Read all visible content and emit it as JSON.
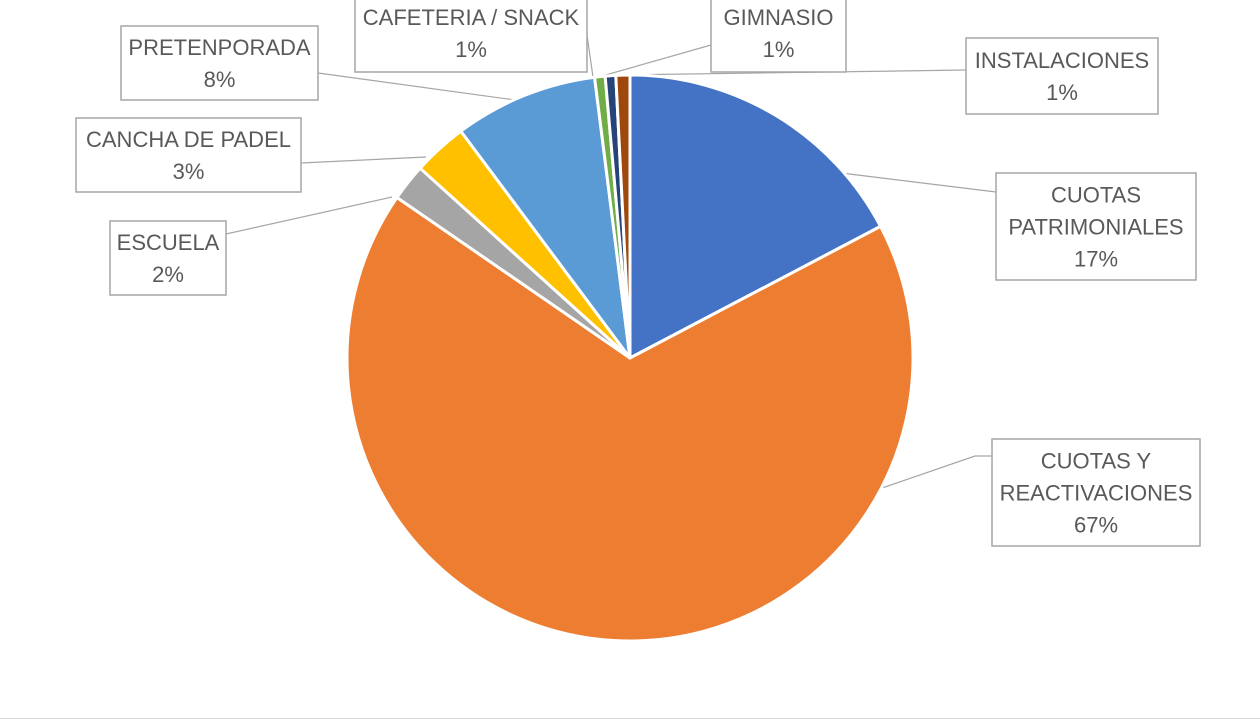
{
  "chart_data": {
    "type": "pie",
    "title": "",
    "start_angle_deg": 0,
    "direction": "clockwise",
    "slices": [
      {
        "label_lines": [
          "CUOTAS",
          "PATRIMONIALES"
        ],
        "percent_label": "17%",
        "value": 17.3,
        "color": "#4472C4"
      },
      {
        "label_lines": [
          "CUOTAS Y",
          "REACTIVACIONES"
        ],
        "percent_label": "67%",
        "value": 67.3,
        "color": "#ED7D31"
      },
      {
        "label_lines": [
          "ESCUELA"
        ],
        "percent_label": "2%",
        "value": 2.1,
        "color": "#A5A5A5"
      },
      {
        "label_lines": [
          "CANCHA DE PADEL"
        ],
        "percent_label": "3%",
        "value": 3.1,
        "color": "#FFC000"
      },
      {
        "label_lines": [
          "PRETENPORADA"
        ],
        "percent_label": "8%",
        "value": 8.2,
        "color": "#5B9BD5"
      },
      {
        "label_lines": [
          "CAFETERIA / SNACK"
        ],
        "percent_label": "1%",
        "value": 0.6,
        "color": "#70AD47"
      },
      {
        "label_lines": [
          "GIMNASIO"
        ],
        "percent_label": "1%",
        "value": 0.6,
        "color": "#264478"
      },
      {
        "label_lines": [
          "INSTALACIONES"
        ],
        "percent_label": "1%",
        "value": 0.8,
        "color": "#9E480E"
      }
    ]
  }
}
